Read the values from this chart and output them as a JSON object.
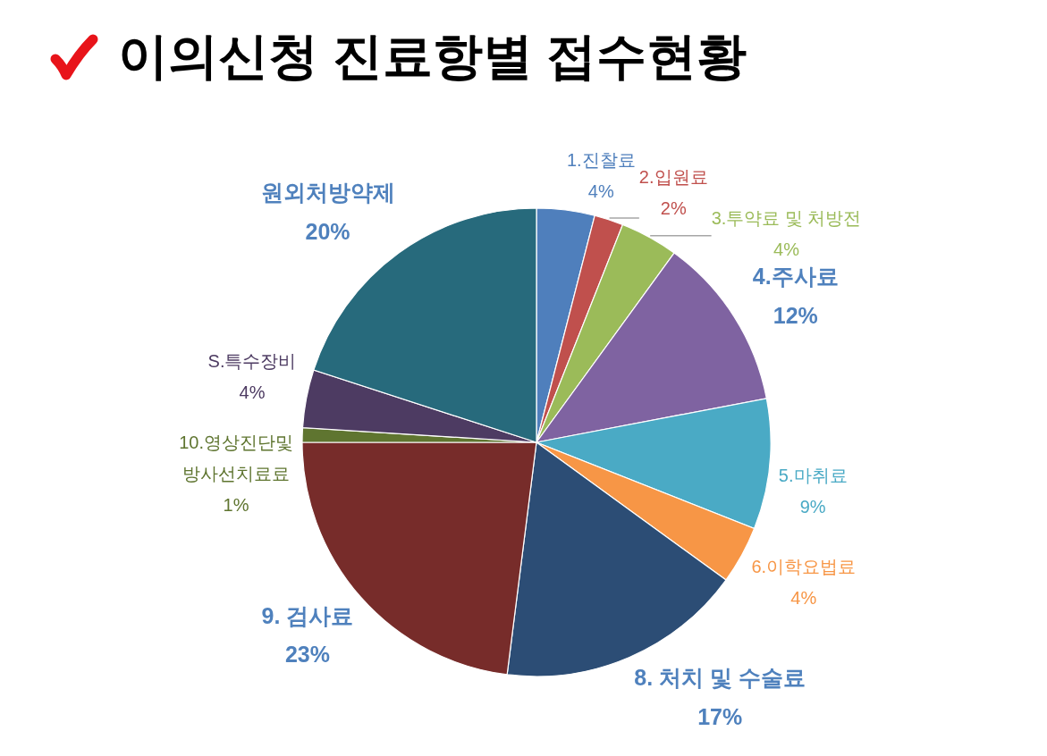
{
  "chart_data": {
    "type": "pie",
    "title": "이의신청 진료항별 접수현황",
    "categories": [
      "1.진찰료",
      "2.입원료",
      "3.투약료 및 처방전",
      "4.주사료",
      "5.마취료",
      "6.이학요법료",
      "8. 처치 및 수술료",
      "9. 검사료",
      "10.영상진단및\n방사선치료료",
      "S.특수장비",
      "원외처방약제"
    ],
    "values": [
      4,
      2,
      4,
      12,
      9,
      4,
      17,
      23,
      1,
      4,
      20
    ],
    "colors": [
      "#4f7fbc",
      "#c0504d",
      "#9bbb59",
      "#7f63a1",
      "#4aaac5",
      "#f79646",
      "#2c4d75",
      "#772c2a",
      "#5f7530",
      "#4d3b62",
      "#276a7c"
    ],
    "value_labels": [
      "4%",
      "2%",
      "4%",
      "12%",
      "9%",
      "4%",
      "17%",
      "23%",
      "1%",
      "4%",
      "20%"
    ]
  }
}
